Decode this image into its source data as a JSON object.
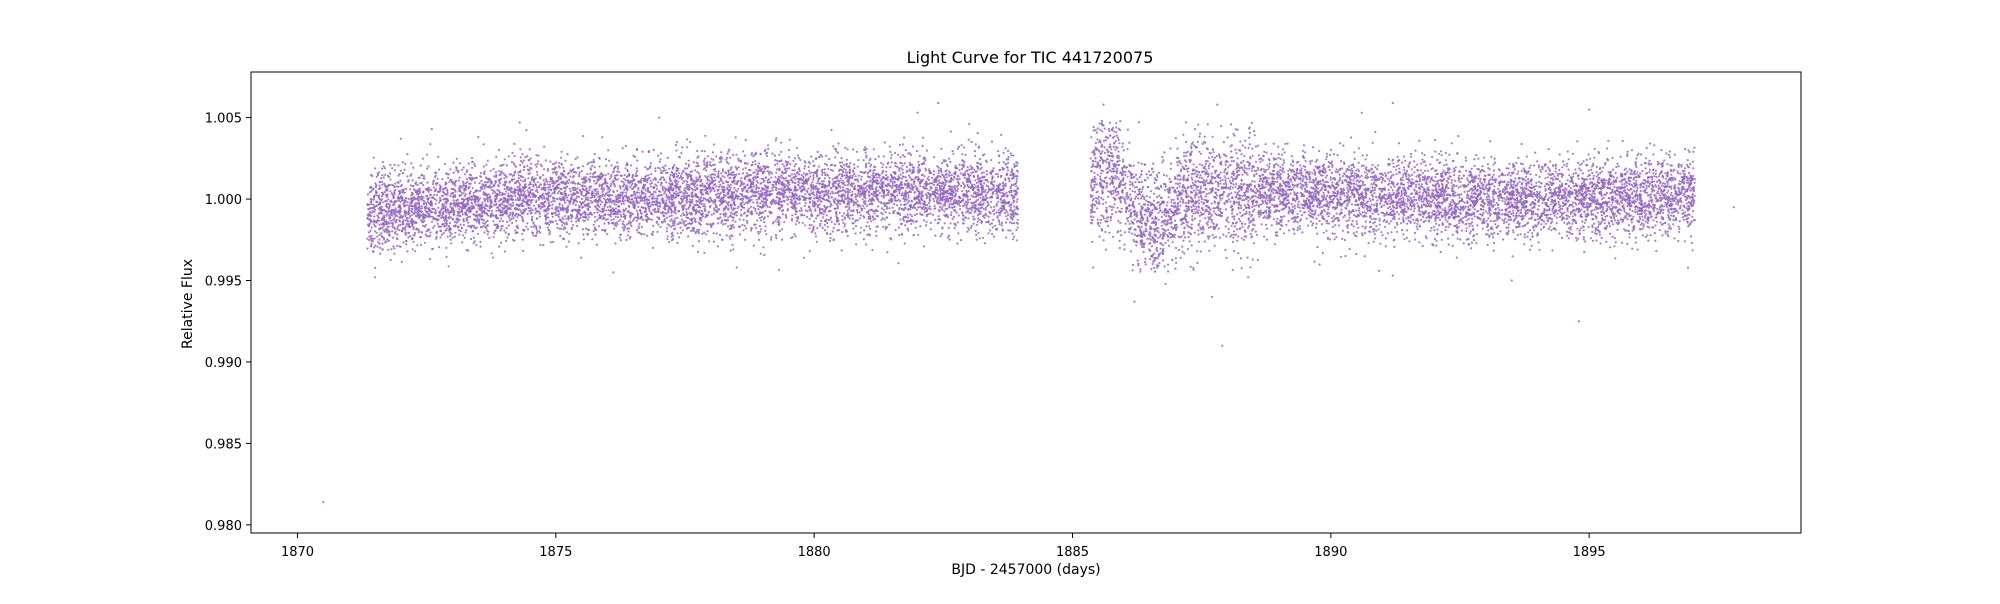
{
  "chart_data": {
    "type": "scatter",
    "title": "Light Curve for TIC 441720075",
    "xlabel": "BJD - 2457000 (days)",
    "ylabel": "Relative Flux",
    "xlim": [
      1869.1,
      1899.1
    ],
    "ylim": [
      0.9795,
      1.0078
    ],
    "x_ticks": [
      1870,
      1875,
      1880,
      1885,
      1890,
      1895
    ],
    "x_tick_labels": [
      "1870",
      "1875",
      "1880",
      "1885",
      "1890",
      "1895"
    ],
    "y_ticks": [
      0.98,
      0.985,
      0.99,
      0.995,
      1.0,
      1.005
    ],
    "y_tick_labels": [
      "0.980",
      "0.985",
      "0.990",
      "0.995",
      "1.000",
      "1.005"
    ],
    "grid": false,
    "legend": "none",
    "series_color": "#9467bd",
    "segments": [
      {
        "x_start": 1871.35,
        "x_end": 1883.95
      },
      {
        "x_start": 1885.35,
        "x_end": 1897.05
      }
    ],
    "sample_points": [
      {
        "x": 1870.5,
        "y": 0.9814
      },
      {
        "x": 1871.5,
        "y": 0.9952
      },
      {
        "x": 1872.0,
        "y": 1.0037
      },
      {
        "x": 1872.6,
        "y": 1.0043
      },
      {
        "x": 1874.3,
        "y": 1.0047
      },
      {
        "x": 1877.0,
        "y": 1.005
      },
      {
        "x": 1878.5,
        "y": 0.9958
      },
      {
        "x": 1882.0,
        "y": 1.0053
      },
      {
        "x": 1882.4,
        "y": 1.0059
      },
      {
        "x": 1883.0,
        "y": 1.0046
      },
      {
        "x": 1885.4,
        "y": 0.9958
      },
      {
        "x": 1885.6,
        "y": 1.0058
      },
      {
        "x": 1886.2,
        "y": 0.9937
      },
      {
        "x": 1886.8,
        "y": 0.9948
      },
      {
        "x": 1887.2,
        "y": 1.0035
      },
      {
        "x": 1887.8,
        "y": 1.0058
      },
      {
        "x": 1887.9,
        "y": 0.991
      },
      {
        "x": 1887.7,
        "y": 0.994
      },
      {
        "x": 1888.4,
        "y": 0.9952
      },
      {
        "x": 1890.6,
        "y": 1.0053
      },
      {
        "x": 1891.2,
        "y": 1.0059
      },
      {
        "x": 1891.2,
        "y": 0.9953
      },
      {
        "x": 1893.5,
        "y": 0.995
      },
      {
        "x": 1894.8,
        "y": 0.9925
      },
      {
        "x": 1895.0,
        "y": 1.0055
      },
      {
        "x": 1897.8,
        "y": 0.9995
      }
    ]
  }
}
